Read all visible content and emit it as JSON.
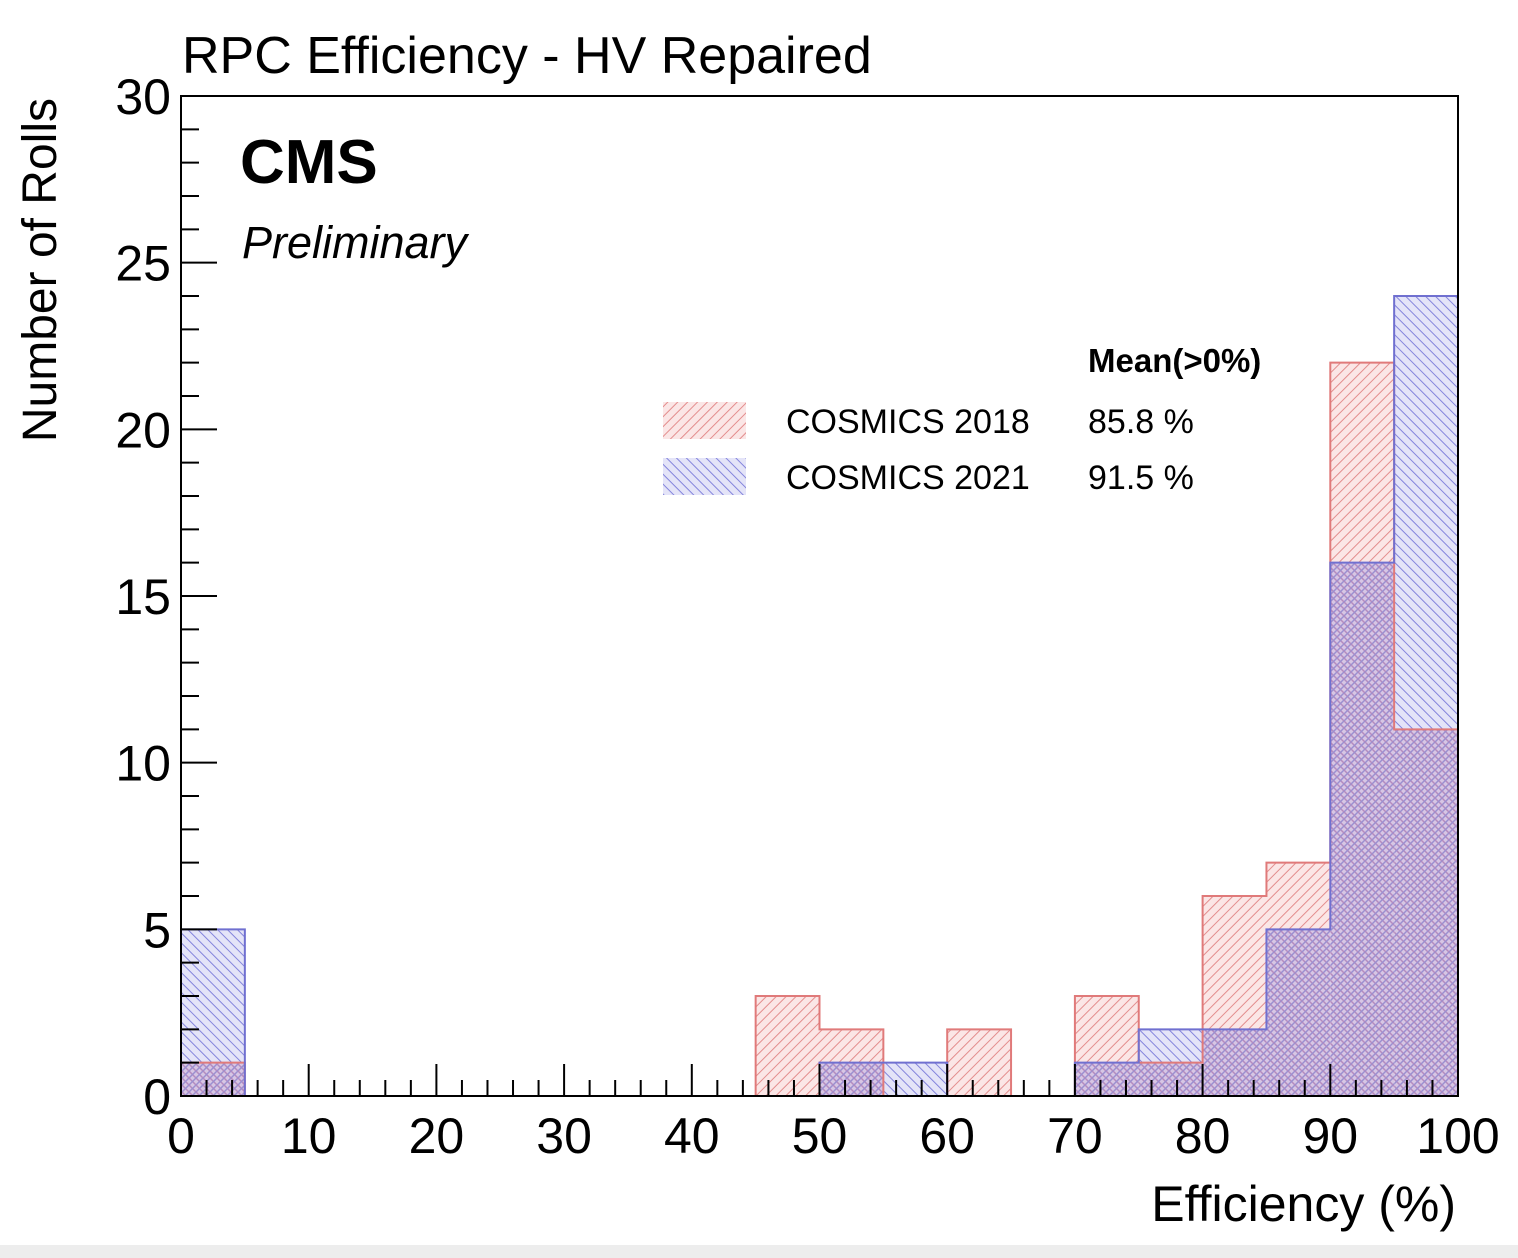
{
  "chart_data": {
    "type": "bar",
    "title": "RPC Efficiency - HV Repaired",
    "xlabel": "Efficiency (%)",
    "ylabel": "Number of Rolls",
    "xlim": [
      0,
      100
    ],
    "ylim": [
      0,
      30
    ],
    "x_ticks": [
      "0",
      "10",
      "20",
      "30",
      "40",
      "50",
      "60",
      "70",
      "80",
      "90",
      "100"
    ],
    "y_ticks": [
      "0",
      "5",
      "10",
      "15",
      "20",
      "25",
      "30"
    ],
    "bin_edges": [
      0,
      5,
      10,
      15,
      20,
      25,
      30,
      35,
      40,
      45,
      50,
      55,
      60,
      65,
      70,
      75,
      80,
      85,
      90,
      95,
      100
    ],
    "series": [
      {
        "name": "COSMICS 2018",
        "mean": "85.8 %",
        "color": "#d9534f",
        "values": [
          1,
          0,
          0,
          0,
          0,
          0,
          0,
          0,
          0,
          3,
          2,
          0,
          2,
          0,
          3,
          1,
          6,
          7,
          22,
          11
        ]
      },
      {
        "name": "COSMICS 2021",
        "mean": "91.5 %",
        "color": "#4a4ad0",
        "values": [
          5,
          0,
          0,
          0,
          0,
          0,
          0,
          0,
          0,
          0,
          1,
          1,
          0,
          0,
          1,
          2,
          2,
          5,
          16,
          24
        ]
      }
    ],
    "legend": {
      "placement": "top-right",
      "header": "Mean(>0%)"
    },
    "annotations": {
      "experiment": "CMS",
      "status": "Preliminary"
    },
    "grid": false
  }
}
